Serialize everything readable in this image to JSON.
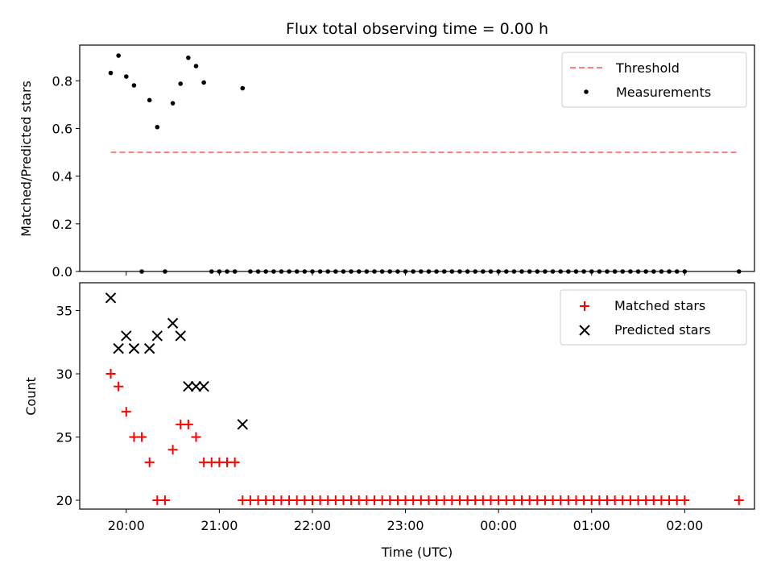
{
  "chart_data": [
    {
      "type": "scatter",
      "title": "Flux total observing time = 0.00 h",
      "xlabel": "",
      "ylabel": "Matched/Predicted stars",
      "ylim": [
        0,
        0.95
      ],
      "yticks": [
        "0.0",
        "0.2",
        "0.4",
        "0.6",
        "0.8"
      ],
      "ytick_values": [
        0,
        0.2,
        0.4,
        0.6,
        0.8
      ],
      "grid": false,
      "legend_position": "top-right",
      "threshold": {
        "name": "Threshold",
        "color": "#ff7f7f",
        "y": 0.5,
        "x_start": "19:50",
        "x_end": "02:35"
      },
      "series": [
        {
          "name": "Measurements",
          "color": "#000000",
          "x": [
            "19:50",
            "19:55",
            "20:00",
            "20:05",
            "20:10",
            "20:15",
            "20:20",
            "20:25",
            "20:30",
            "20:35",
            "20:40",
            "20:45",
            "20:50",
            "20:55",
            "21:00",
            "21:05",
            "21:10",
            "21:15",
            "21:20",
            "21:25",
            "21:30",
            "21:35",
            "21:40",
            "21:45",
            "21:50",
            "21:55",
            "22:00",
            "22:05",
            "22:10",
            "22:15",
            "22:20",
            "22:25",
            "22:30",
            "22:35",
            "22:40",
            "22:45",
            "22:50",
            "22:55",
            "23:00",
            "23:05",
            "23:10",
            "23:15",
            "23:20",
            "23:25",
            "23:30",
            "23:35",
            "23:40",
            "23:45",
            "23:50",
            "23:55",
            "00:00",
            "00:05",
            "00:10",
            "00:15",
            "00:20",
            "00:25",
            "00:30",
            "00:35",
            "00:40",
            "00:45",
            "00:50",
            "00:55",
            "01:00",
            "01:05",
            "01:10",
            "01:15",
            "01:20",
            "01:25",
            "01:30",
            "01:35",
            "01:40",
            "01:45",
            "01:50",
            "01:55",
            "02:00",
            "02:35"
          ],
          "y": [
            0.833,
            0.906,
            0.818,
            0.781,
            0.0,
            0.719,
            0.606,
            0.0,
            0.706,
            0.788,
            0.897,
            0.862,
            0.793,
            0.0,
            0.0,
            0.0,
            0.0,
            0.769,
            0.0,
            0.0,
            0.0,
            0.0,
            0.0,
            0.0,
            0.0,
            0.0,
            0.0,
            0.0,
            0.0,
            0.0,
            0.0,
            0.0,
            0.0,
            0.0,
            0.0,
            0.0,
            0.0,
            0.0,
            0.0,
            0.0,
            0.0,
            0.0,
            0.0,
            0.0,
            0.0,
            0.0,
            0.0,
            0.0,
            0.0,
            0.0,
            0.0,
            0.0,
            0.0,
            0.0,
            0.0,
            0.0,
            0.0,
            0.0,
            0.0,
            0.0,
            0.0,
            0.0,
            0.0,
            0.0,
            0.0,
            0.0,
            0.0,
            0.0,
            0.0,
            0.0,
            0.0,
            0.0,
            0.0,
            0.0,
            0.0,
            0.0
          ]
        }
      ]
    },
    {
      "type": "scatter",
      "title": "",
      "xlabel": "Time (UTC)",
      "ylabel": "Count",
      "ylim": [
        19.3,
        37.2
      ],
      "yticks": [
        "20",
        "25",
        "30",
        "35"
      ],
      "ytick_values": [
        20,
        25,
        30,
        35
      ],
      "xticks": [
        "20:00",
        "21:00",
        "22:00",
        "23:00",
        "00:00",
        "01:00",
        "02:00"
      ],
      "xlim": [
        "19:30",
        "02:45"
      ],
      "grid": false,
      "legend_position": "top-right",
      "series": [
        {
          "name": "Matched stars",
          "color": "#ff0000",
          "marker": "+",
          "x": [
            "19:50",
            "19:55",
            "20:00",
            "20:05",
            "20:10",
            "20:15",
            "20:20",
            "20:25",
            "20:30",
            "20:35",
            "20:40",
            "20:45",
            "20:50",
            "20:55",
            "21:00",
            "21:05",
            "21:10",
            "21:15",
            "21:20",
            "21:25",
            "21:30",
            "21:35",
            "21:40",
            "21:45",
            "21:50",
            "21:55",
            "22:00",
            "22:05",
            "22:10",
            "22:15",
            "22:20",
            "22:25",
            "22:30",
            "22:35",
            "22:40",
            "22:45",
            "22:50",
            "22:55",
            "23:00",
            "23:05",
            "23:10",
            "23:15",
            "23:20",
            "23:25",
            "23:30",
            "23:35",
            "23:40",
            "23:45",
            "23:50",
            "23:55",
            "00:00",
            "00:05",
            "00:10",
            "00:15",
            "00:20",
            "00:25",
            "00:30",
            "00:35",
            "00:40",
            "00:45",
            "00:50",
            "00:55",
            "01:00",
            "01:05",
            "01:10",
            "01:15",
            "01:20",
            "01:25",
            "01:30",
            "01:35",
            "01:40",
            "01:45",
            "01:50",
            "01:55",
            "02:00",
            "02:35"
          ],
          "y": [
            30,
            29,
            27,
            25,
            25,
            23,
            20,
            20,
            24,
            26,
            26,
            25,
            23,
            23,
            23,
            23,
            23,
            20,
            20,
            20,
            20,
            20,
            20,
            20,
            20,
            20,
            20,
            20,
            20,
            20,
            20,
            20,
            20,
            20,
            20,
            20,
            20,
            20,
            20,
            20,
            20,
            20,
            20,
            20,
            20,
            20,
            20,
            20,
            20,
            20,
            20,
            20,
            20,
            20,
            20,
            20,
            20,
            20,
            20,
            20,
            20,
            20,
            20,
            20,
            20,
            20,
            20,
            20,
            20,
            20,
            20,
            20,
            20,
            20,
            20,
            20
          ]
        },
        {
          "name": "Predicted stars",
          "color": "#000000",
          "marker": "x",
          "x": [
            "19:50",
            "19:55",
            "20:00",
            "20:05",
            "20:15",
            "20:20",
            "20:30",
            "20:35",
            "20:40",
            "20:45",
            "20:50",
            "21:15"
          ],
          "y": [
            36,
            32,
            33,
            32,
            32,
            33,
            34,
            33,
            29,
            29,
            29,
            26
          ]
        }
      ]
    }
  ]
}
